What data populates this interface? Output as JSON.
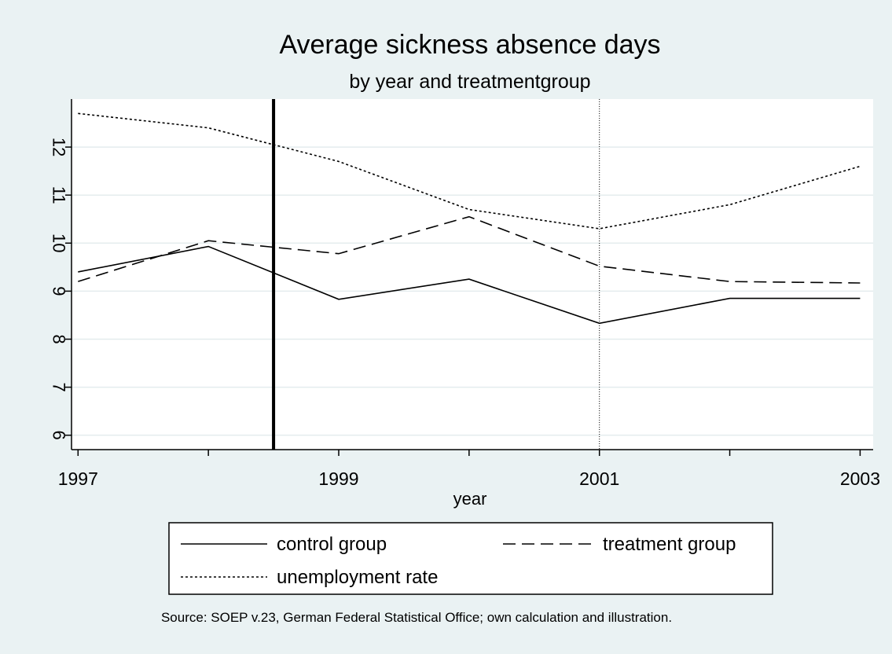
{
  "chart_data": {
    "type": "line",
    "title": "Average sickness absence days",
    "subtitle": "by year and treatmentgroup",
    "xlabel": "year",
    "ylabel": "",
    "x": [
      1997,
      1998,
      1999,
      2000,
      2001,
      2002,
      2003
    ],
    "xlim": [
      1996.95,
      2003.1
    ],
    "ylim": [
      5.7,
      13.0
    ],
    "x_ticks": [
      1997,
      1998,
      1999,
      2000,
      2001,
      2002,
      2003
    ],
    "x_tick_labels": [
      "1997",
      "",
      "1999",
      "",
      "2001",
      "",
      "2003"
    ],
    "y_ticks": [
      6,
      7,
      8,
      9,
      10,
      11,
      12
    ],
    "y_tick_labels": [
      "6",
      "7",
      "8",
      "9",
      "10",
      "11",
      "12"
    ],
    "grid": true,
    "series": [
      {
        "name": "control group",
        "style": "solid",
        "values": [
          9.4,
          9.93,
          8.83,
          9.25,
          8.33,
          8.85,
          8.85
        ]
      },
      {
        "name": "treatment group",
        "style": "dash",
        "values": [
          9.2,
          10.05,
          9.78,
          10.55,
          9.52,
          9.2,
          9.17
        ]
      },
      {
        "name": "unemployment rate",
        "style": "dot",
        "values": [
          12.7,
          12.4,
          11.7,
          10.7,
          10.3,
          10.8,
          11.6
        ]
      }
    ],
    "reference_lines": [
      {
        "x": 1998.5,
        "style": "thick-solid"
      },
      {
        "x": 2001,
        "style": "dotted"
      }
    ],
    "legend": {
      "placement": "bottom",
      "entries": [
        "control group",
        "treatment group",
        "unemployment rate"
      ]
    },
    "note": "Source: SOEP v.23, German Federal Statistical Office; own calculation and illustration."
  }
}
